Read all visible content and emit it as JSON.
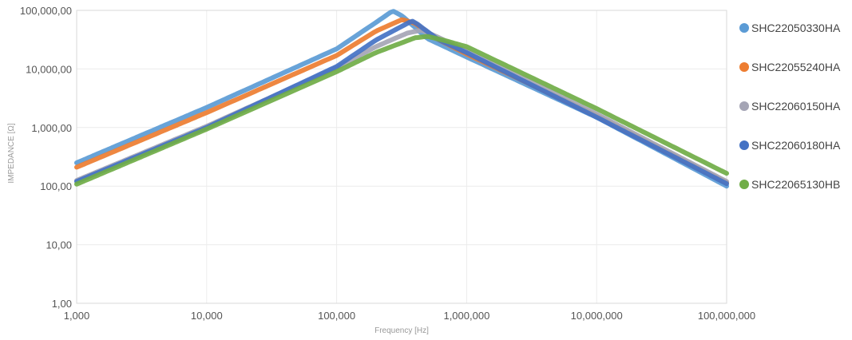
{
  "chart_data": {
    "type": "line",
    "title": "",
    "xlabel": "Frequency [Hz]",
    "ylabel": "IMPEDANCE [Ω]",
    "x_scale": "log",
    "y_scale": "log",
    "xlim": [
      1000,
      100000000
    ],
    "ylim": [
      1,
      100000
    ],
    "x_ticks": [
      1000,
      10000,
      100000,
      1000000,
      10000000,
      100000000
    ],
    "x_tick_labels": [
      "1,000",
      "10,000",
      "100,000",
      "1,000,000",
      "10,000,000",
      "100,000,000"
    ],
    "y_ticks": [
      1,
      10,
      100,
      1000,
      10000,
      100000
    ],
    "y_tick_labels": [
      "1,00",
      "10,00",
      "100,00",
      "1,000,00",
      "10,000,00",
      "100,000,00"
    ],
    "grid": true,
    "legend_position": "right",
    "series": [
      {
        "name": "SHC22050330HA",
        "color": "#5b9bd5",
        "x": [
          1000,
          10000,
          100000,
          200000,
          270000,
          320000,
          500000,
          1000000,
          10000000,
          100000000
        ],
        "y": [
          250,
          2200,
          22000,
          62000,
          98000,
          80000,
          33000,
          16000,
          1500,
          100
        ]
      },
      {
        "name": "SHC22055240HA",
        "color": "#ed7d31",
        "x": [
          1000,
          10000,
          100000,
          200000,
          320000,
          400000,
          600000,
          1000000,
          10000000,
          100000000
        ],
        "y": [
          210,
          1800,
          17000,
          44000,
          70000,
          60000,
          32000,
          18000,
          1600,
          115
        ]
      },
      {
        "name": "SHC22060150HA",
        "color": "#a5a5b5",
        "x": [
          1000,
          10000,
          100000,
          200000,
          350000,
          450000,
          600000,
          1000000,
          10000000,
          100000000
        ],
        "y": [
          125,
          1050,
          10500,
          24000,
          41000,
          46000,
          35000,
          20000,
          1700,
          120
        ]
      },
      {
        "name": "SHC22060180HA",
        "color": "#4472c4",
        "x": [
          1000,
          10000,
          100000,
          200000,
          380000,
          420000,
          600000,
          1000000,
          10000000,
          100000000
        ],
        "y": [
          120,
          1000,
          11000,
          31000,
          66000,
          58000,
          32000,
          19000,
          1500,
          110
        ]
      },
      {
        "name": "SHC22065130HB",
        "color": "#70ad47",
        "x": [
          1000,
          10000,
          100000,
          200000,
          400000,
          500000,
          700000,
          1000000,
          10000000,
          100000000
        ],
        "y": [
          108,
          940,
          9000,
          19000,
          34000,
          36000,
          30000,
          24000,
          2100,
          165
        ]
      }
    ]
  }
}
